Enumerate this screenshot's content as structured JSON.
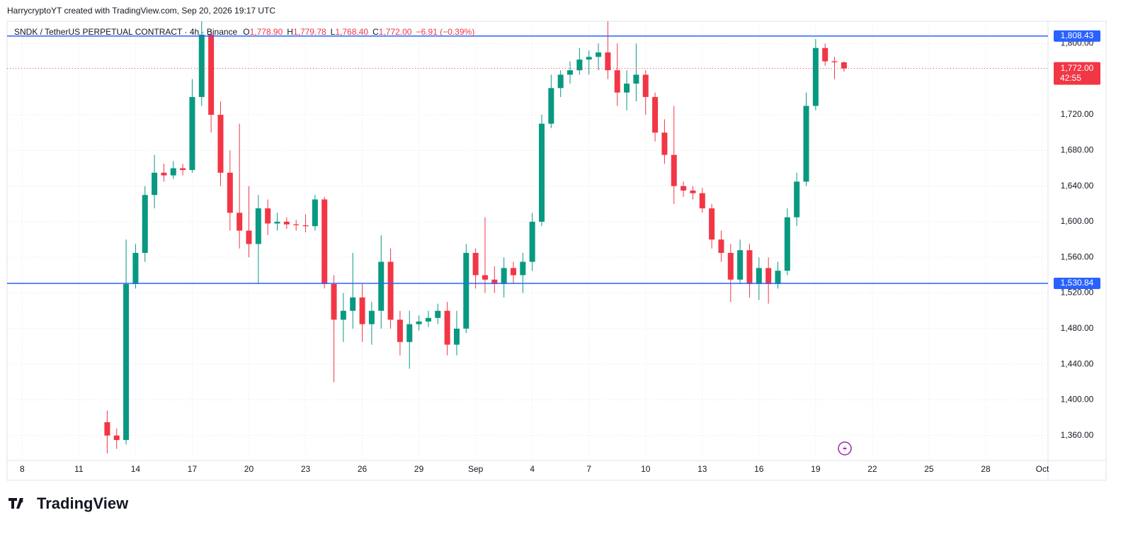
{
  "chart_data": {
    "type": "candlestick",
    "watermark": "HarrycryptoYT created with TradingView.com, Sep 20, 2026 19:17 UTC",
    "symbol": "SNDK / TetherUS PERPETUAL CONTRACT · 4h · Binance",
    "ohlc_legend": [
      {
        "label": "O",
        "value": "1,778.90"
      },
      {
        "label": "H",
        "value": "1,779.78"
      },
      {
        "label": "L",
        "value": "1,768.40"
      },
      {
        "label": "C",
        "value": "1,772.00"
      }
    ],
    "change": "−6.91 (−0.39%)",
    "branding": "TradingView",
    "up_color": "#089981",
    "down_color": "#f23645",
    "grid": true,
    "xlim": [
      7.2,
      62.3
    ],
    "ylim": [
      1332,
      1825
    ],
    "xticks": [
      8,
      11,
      14,
      17,
      20,
      23,
      26,
      29,
      {
        "value": 32,
        "label": "Sep"
      },
      {
        "value": 35,
        "label": "4"
      },
      {
        "value": 38,
        "label": "7"
      },
      {
        "value": 41,
        "label": "10"
      },
      {
        "value": 44,
        "label": "13"
      },
      {
        "value": 47,
        "label": "16"
      },
      {
        "value": 50,
        "label": "19"
      },
      {
        "value": 53,
        "label": "22"
      },
      {
        "value": 56,
        "label": "25"
      },
      {
        "value": 59,
        "label": "28"
      },
      {
        "value": 62,
        "label": "Oct"
      }
    ],
    "yticks": [
      {
        "value": 1360,
        "label": "1,360.00"
      },
      {
        "value": 1400,
        "label": "1,400.00"
      },
      {
        "value": 1440,
        "label": "1,440.00"
      },
      {
        "value": 1480,
        "label": "1,480.00"
      },
      {
        "value": 1520,
        "label": "1,520.00"
      },
      {
        "value": 1560,
        "label": "1,560.00"
      },
      {
        "value": 1600,
        "label": "1,600.00"
      },
      {
        "value": 1640,
        "label": "1,640.00"
      },
      {
        "value": 1680,
        "label": "1,680.00"
      },
      {
        "value": 1720,
        "label": "1,720.00"
      },
      {
        "value": 1800,
        "label": "1,800.00"
      }
    ],
    "hlines": [
      {
        "value": 1808.43,
        "label": "1,808.43",
        "color": "#2962ff"
      },
      {
        "value": 1530.84,
        "label": "1,530.84",
        "color": "#2962ff"
      }
    ],
    "last_price": {
      "value": 1772.0,
      "label": "1,772.00",
      "countdown": "42:55",
      "color": "#f23645"
    },
    "x": [
      12.5,
      13,
      13.5,
      14,
      14.5,
      15,
      15.5,
      16,
      16.5,
      17,
      17.5,
      18,
      18.5,
      19,
      19.5,
      20,
      20.5,
      21,
      21.5,
      22,
      22.5,
      23,
      23.5,
      24,
      24.5,
      25,
      25.5,
      26,
      26.5,
      27,
      27.5,
      28,
      28.5,
      29,
      29.5,
      30,
      30.5,
      31,
      31.5,
      32,
      32.5,
      33,
      33.5,
      34,
      34.5,
      35,
      35.5,
      36,
      36.5,
      37,
      37.5,
      38,
      38.5,
      39,
      39.5,
      40,
      40.5,
      41,
      41.5,
      42,
      42.5,
      43,
      43.5,
      44,
      44.5,
      45,
      45.5,
      46,
      46.5,
      47,
      47.5,
      48,
      48.5,
      49,
      49.5,
      50,
      50.5,
      51,
      51.5
    ],
    "open": [
      1375,
      1360,
      1355,
      1530,
      1565,
      1630,
      1655,
      1652,
      1660,
      1658,
      1740,
      1810,
      1720,
      1655,
      1610,
      1590,
      1575,
      1615,
      1598,
      1600,
      1597,
      1596,
      1595,
      1625,
      1530,
      1490,
      1500,
      1515,
      1485,
      1500,
      1555,
      1490,
      1465,
      1485,
      1488,
      1492,
      1500,
      1462,
      1480,
      1565,
      1540,
      1535,
      1530,
      1548,
      1540,
      1555,
      1600,
      1710,
      1750,
      1765,
      1770,
      1782,
      1785,
      1790,
      1770,
      1745,
      1755,
      1765,
      1740,
      1700,
      1675,
      1640,
      1635,
      1632,
      1615,
      1580,
      1565,
      1535,
      1568,
      1530,
      1548,
      1530,
      1545,
      1605,
      1645,
      1730,
      1795,
      1780,
      1778.9
    ],
    "high": [
      1388,
      1368,
      1580,
      1575,
      1640,
      1675,
      1665,
      1668,
      1665,
      1760,
      1830,
      1815,
      1735,
      1680,
      1710,
      1640,
      1630,
      1625,
      1610,
      1605,
      1602,
      1608,
      1630,
      1628,
      1540,
      1520,
      1565,
      1530,
      1510,
      1585,
      1570,
      1500,
      1500,
      1495,
      1500,
      1508,
      1510,
      1500,
      1575,
      1570,
      1605,
      1550,
      1560,
      1555,
      1565,
      1610,
      1720,
      1765,
      1770,
      1780,
      1795,
      1792,
      1800,
      1830,
      1800,
      1770,
      1800,
      1770,
      1745,
      1715,
      1730,
      1645,
      1640,
      1638,
      1620,
      1590,
      1575,
      1580,
      1575,
      1560,
      1560,
      1555,
      1615,
      1655,
      1745,
      1805,
      1800,
      1785,
      1779.78
    ],
    "low": [
      1340,
      1345,
      1350,
      1525,
      1555,
      1615,
      1645,
      1648,
      1652,
      1655,
      1730,
      1700,
      1640,
      1590,
      1570,
      1560,
      1530,
      1585,
      1590,
      1592,
      1590,
      1588,
      1590,
      1525,
      1420,
      1465,
      1480,
      1465,
      1462,
      1480,
      1480,
      1450,
      1435,
      1478,
      1482,
      1485,
      1450,
      1450,
      1475,
      1525,
      1520,
      1520,
      1515,
      1530,
      1520,
      1545,
      1595,
      1705,
      1740,
      1755,
      1765,
      1765,
      1770,
      1760,
      1730,
      1725,
      1735,
      1720,
      1690,
      1665,
      1620,
      1628,
      1625,
      1610,
      1570,
      1555,
      1510,
      1530,
      1515,
      1512,
      1508,
      1525,
      1540,
      1595,
      1640,
      1725,
      1775,
      1760,
      1768.4
    ],
    "close": [
      1360,
      1355,
      1530,
      1565,
      1630,
      1655,
      1652,
      1660,
      1658,
      1740,
      1810,
      1720,
      1655,
      1610,
      1590,
      1575,
      1615,
      1598,
      1600,
      1597,
      1596,
      1595,
      1625,
      1530,
      1490,
      1500,
      1515,
      1485,
      1500,
      1555,
      1490,
      1465,
      1485,
      1488,
      1492,
      1500,
      1462,
      1480,
      1565,
      1540,
      1535,
      1530,
      1548,
      1540,
      1555,
      1600,
      1710,
      1750,
      1765,
      1770,
      1782,
      1785,
      1790,
      1770,
      1745,
      1755,
      1765,
      1740,
      1700,
      1675,
      1640,
      1635,
      1632,
      1615,
      1580,
      1565,
      1535,
      1568,
      1530,
      1548,
      1530,
      1545,
      1605,
      1645,
      1730,
      1795,
      1780,
      1778.91,
      1772.0
    ]
  }
}
